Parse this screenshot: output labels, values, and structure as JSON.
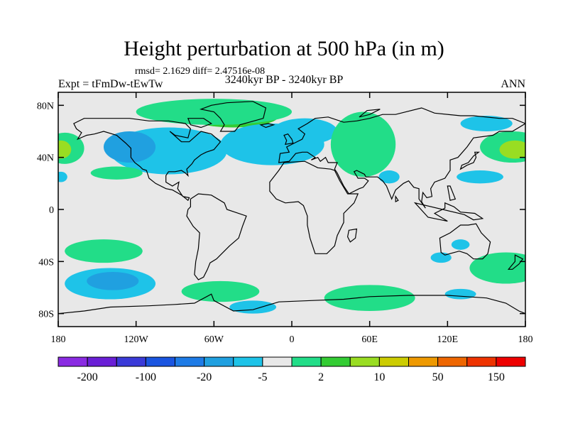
{
  "header": {
    "title": "Height perturbation at 500 hPa (in m)",
    "stats": "rmsd= 2.1629 diff= 2.47516e-08",
    "experiment": "Expt = tFmDw-tEwTw",
    "period": "3240kyr BP - 3240kyr BP",
    "season": "ANN"
  },
  "colors": {
    "ocean_bg": "#e8e8e8",
    "coast": "#000000"
  },
  "chart_data": {
    "type": "heatmap",
    "subtype": "filled-contour map",
    "title": "Height perturbation at 500 hPa (in m)",
    "xlim": [
      -180,
      180
    ],
    "ylim": [
      -90,
      90
    ],
    "x_ticks": [
      {
        "value": -180,
        "label": "180"
      },
      {
        "value": -120,
        "label": "120W"
      },
      {
        "value": -60,
        "label": "60W"
      },
      {
        "value": 0,
        "label": "0"
      },
      {
        "value": 60,
        "label": "60E"
      },
      {
        "value": 120,
        "label": "120E"
      },
      {
        "value": 180,
        "label": "180"
      }
    ],
    "y_ticks": [
      {
        "value": 80,
        "label": "80N"
      },
      {
        "value": 40,
        "label": "40N"
      },
      {
        "value": 0,
        "label": "0"
      },
      {
        "value": -40,
        "label": "40S"
      },
      {
        "value": -80,
        "label": "80S"
      }
    ],
    "colorbar": {
      "colors": [
        "#8a2be2",
        "#6a1fd6",
        "#3a3ad8",
        "#1a55e0",
        "#1e7be6",
        "#20a0e0",
        "#1ec3e8",
        "#e8e8e8",
        "#22dd88",
        "#33cc33",
        "#99dd22",
        "#cccc00",
        "#ee9900",
        "#ee6600",
        "#ee3300",
        "#ee0000"
      ],
      "labels": [
        "-200",
        "-100",
        "-20",
        "-5",
        "2",
        "10",
        "50",
        "150"
      ]
    },
    "regions": [
      {
        "id": "greenland-high",
        "color": "#33cc33",
        "lon": -45,
        "lat": 72,
        "rlon": 35,
        "rlat": 9
      },
      {
        "id": "arctic-canada-high",
        "color": "#22dd88",
        "lon": -60,
        "lat": 75,
        "rlon": 60,
        "rlat": 10
      },
      {
        "id": "north-america-low",
        "color": "#1ec3e8",
        "lon": -95,
        "lat": 45,
        "rlon": 45,
        "rlat": 18
      },
      {
        "id": "north-pacific-low-core",
        "color": "#20a0e0",
        "lon": -125,
        "lat": 48,
        "rlon": 20,
        "rlat": 12
      },
      {
        "id": "north-atlantic-low",
        "color": "#1ec3e8",
        "lon": -15,
        "lat": 50,
        "rlon": 40,
        "rlat": 16
      },
      {
        "id": "europe-low",
        "color": "#1ec3e8",
        "lon": 10,
        "lat": 60,
        "rlon": 25,
        "rlat": 10
      },
      {
        "id": "russia-high",
        "color": "#22dd88",
        "lon": 55,
        "lat": 50,
        "rlon": 25,
        "rlat": 25
      },
      {
        "id": "pacific-dateline-high",
        "color": "#22dd88",
        "lon": 170,
        "lat": 48,
        "rlon": 25,
        "rlat": 12
      },
      {
        "id": "pacific-dateline-high-core",
        "color": "#99dd22",
        "lon": 172,
        "lat": 46,
        "rlon": 12,
        "rlat": 7
      },
      {
        "id": "west-pacific-edge-high",
        "color": "#22dd88",
        "lon": -175,
        "lat": 47,
        "rlon": 15,
        "rlat": 12
      },
      {
        "id": "west-pacific-edge-high-core",
        "color": "#99dd22",
        "lon": -178,
        "lat": 46,
        "rlon": 8,
        "rlat": 7
      },
      {
        "id": "east-pacific-high",
        "color": "#22dd88",
        "lon": -135,
        "lat": 28,
        "rlon": 20,
        "rlat": 5
      },
      {
        "id": "arabia-low",
        "color": "#1ec3e8",
        "lon": 75,
        "lat": 25,
        "rlon": 8,
        "rlat": 5
      },
      {
        "id": "north-pacific-low",
        "color": "#1ec3e8",
        "lon": 150,
        "lat": 66,
        "rlon": 20,
        "rlat": 6
      },
      {
        "id": "west-pacific-low",
        "color": "#1ec3e8",
        "lon": 145,
        "lat": 25,
        "rlon": 18,
        "rlat": 5
      },
      {
        "id": "east-pacific-low-small",
        "color": "#1ec3e8",
        "lon": -178,
        "lat": 25,
        "rlon": 5,
        "rlat": 4
      },
      {
        "id": "south-pacific-high",
        "color": "#22dd88",
        "lon": -145,
        "lat": -32,
        "rlon": 30,
        "rlat": 9
      },
      {
        "id": "south-pacific-low",
        "color": "#1ec3e8",
        "lon": -140,
        "lat": -57,
        "rlon": 35,
        "rlat": 12
      },
      {
        "id": "south-pacific-low-core",
        "color": "#20a0e0",
        "lon": -138,
        "lat": -55,
        "rlon": 20,
        "rlat": 7
      },
      {
        "id": "south-atlantic-high",
        "color": "#22dd88",
        "lon": -55,
        "lat": -63,
        "rlon": 30,
        "rlat": 8
      },
      {
        "id": "weddell-low",
        "color": "#1ec3e8",
        "lon": -30,
        "lat": -75,
        "rlon": 18,
        "rlat": 5
      },
      {
        "id": "indian-ocean-high",
        "color": "#22dd88",
        "lon": 60,
        "lat": -68,
        "rlon": 35,
        "rlat": 10
      },
      {
        "id": "australia-low-north",
        "color": "#1ec3e8",
        "lon": 130,
        "lat": -27,
        "rlon": 7,
        "rlat": 4
      },
      {
        "id": "australia-low-south",
        "color": "#1ec3e8",
        "lon": 115,
        "lat": -37,
        "rlon": 8,
        "rlat": 4
      },
      {
        "id": "southern-ocean-low",
        "color": "#1ec3e8",
        "lon": 130,
        "lat": -65,
        "rlon": 12,
        "rlat": 4
      },
      {
        "id": "tasman-high",
        "color": "#22dd88",
        "lon": 165,
        "lat": -45,
        "rlon": 28,
        "rlat": 12
      }
    ]
  }
}
